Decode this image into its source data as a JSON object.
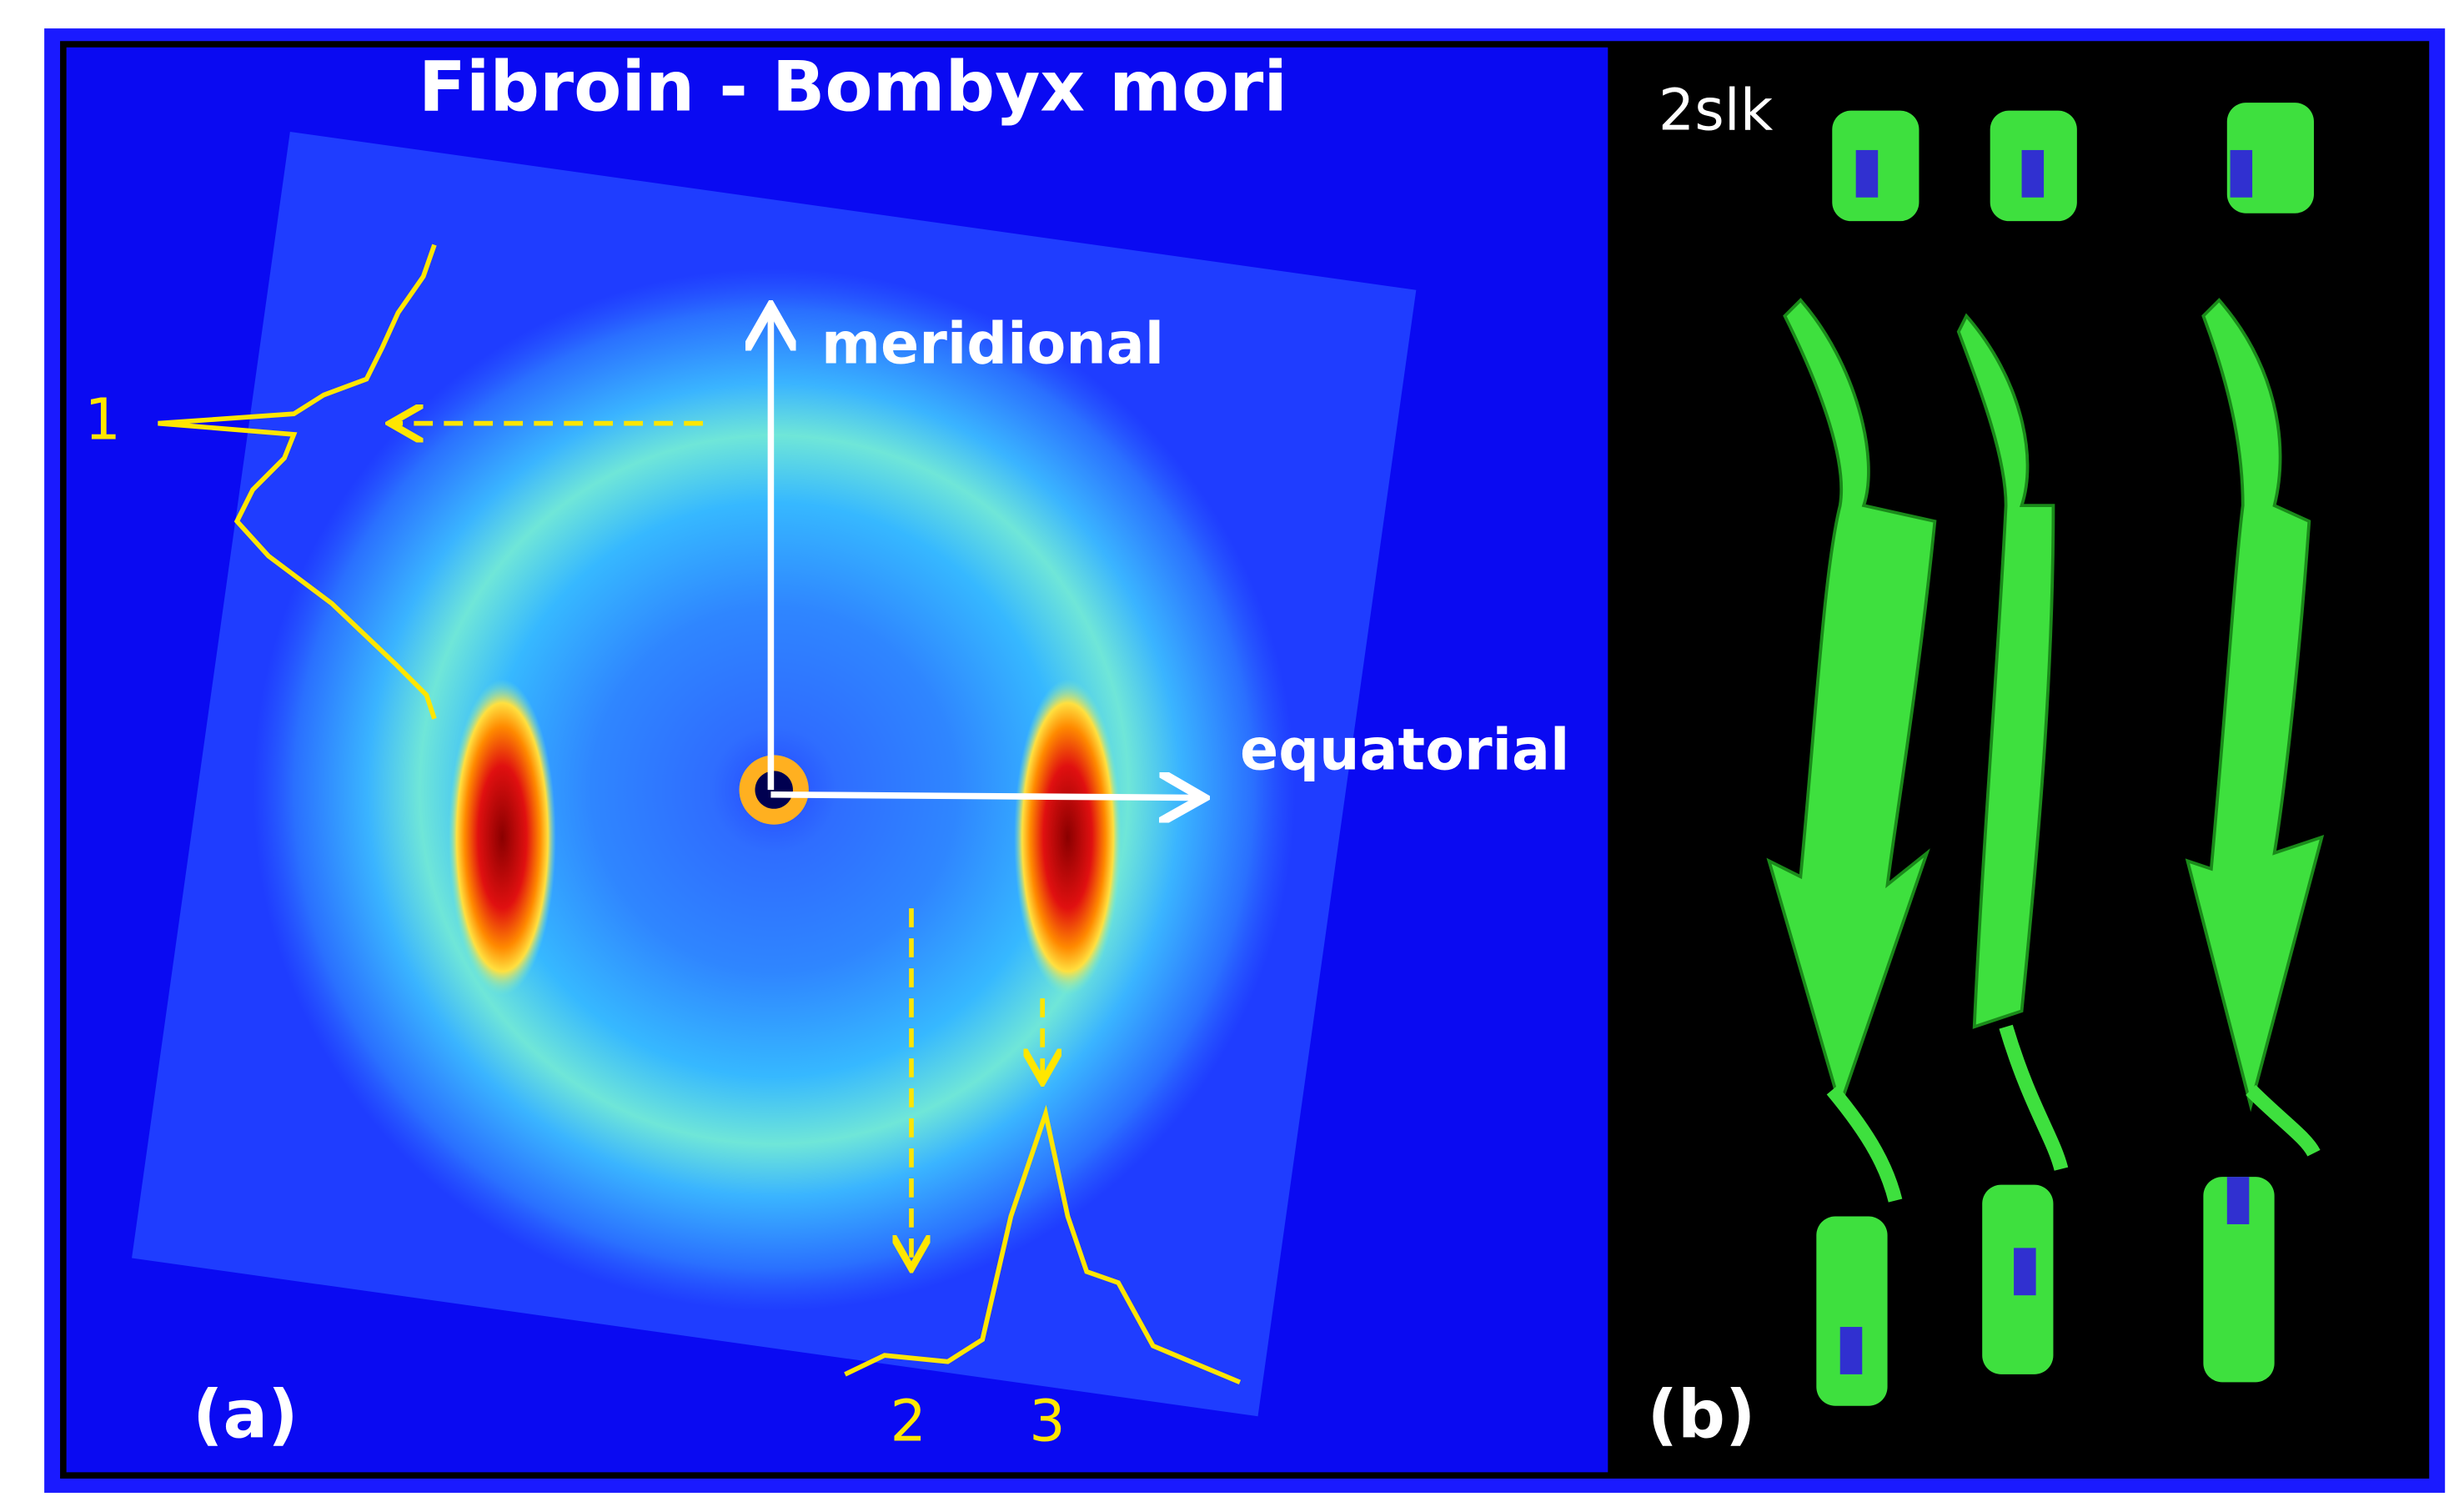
{
  "panel_a": {
    "title": "Fibroin - Bombyx mori",
    "label": "(a)",
    "axes": {
      "meridional": "meridional",
      "equatorial": "equatorial"
    },
    "profiles": [
      "1",
      "2",
      "3"
    ]
  },
  "panel_b": {
    "label": "(b)",
    "pdb_id": "2slk"
  }
}
